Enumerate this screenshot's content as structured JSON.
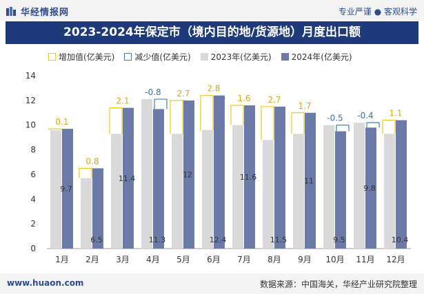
{
  "header": {
    "brand": "华经情报网",
    "slogan": "专业严谨 ● 客观科学"
  },
  "footer": {
    "site": "www.huaon.com",
    "source": "数据来源：中国海关，华经产业研究院整理"
  },
  "chart_data": {
    "type": "bar",
    "title": "2023-2024年保定市（境内目的地/货源地）月度出口额",
    "xlabel": "",
    "ylabel": "",
    "categories": [
      "1月",
      "2月",
      "3月",
      "4月",
      "5月",
      "6月",
      "7月",
      "8月",
      "9月",
      "10月",
      "11月",
      "12月"
    ],
    "series": [
      {
        "name": "2023年(亿美元)",
        "values": [
          9.6,
          5.7,
          9.3,
          12.1,
          9.3,
          9.6,
          10.0,
          8.8,
          9.3,
          10.0,
          10.2,
          9.3
        ]
      },
      {
        "name": "2024年(亿美元)",
        "values": [
          9.7,
          6.5,
          11.4,
          11.3,
          12,
          12.4,
          11.6,
          11.5,
          11,
          9.5,
          9.8,
          10.4
        ]
      }
    ],
    "change": {
      "increase_name": "增加值(亿美元)",
      "decrease_name": "减少值(亿美元)",
      "labels": [
        "0.1",
        "0.8",
        "2.1",
        "-0.8",
        "2.7",
        "2.8",
        "1.6",
        "2.7",
        "1.7",
        "-0.5",
        "-0.4",
        "1.1"
      ]
    },
    "value_labels_2024": [
      "9.7",
      "6.5",
      "11.4",
      "11.3",
      "12",
      "12.4",
      "11.6",
      "11.5",
      "11",
      "9.5",
      "9.8",
      "10.4"
    ],
    "yticks": [
      "0",
      "2",
      "4",
      "6",
      "8",
      "10",
      "12",
      "14"
    ],
    "ylim": [
      0,
      14
    ],
    "legend": "top-left",
    "grid": false,
    "colors": {
      "y2023": "#d9d9d9",
      "y2024": "#6b7aa6",
      "increase": "#f5c518",
      "decrease": "#3b7ec6",
      "increase_text": "#d4a90c",
      "decrease_text": "#3b6ea5"
    }
  }
}
